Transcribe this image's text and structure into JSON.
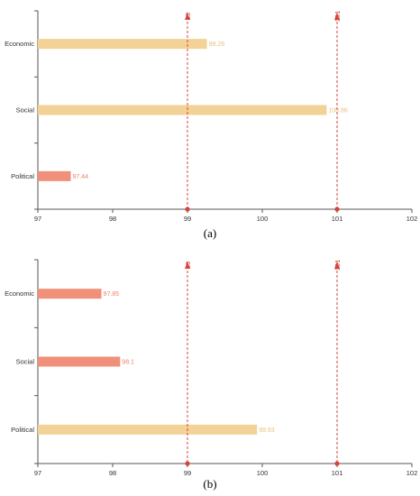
{
  "colors": {
    "bar_high": "#f2d296",
    "bar_low": "#f0907a",
    "value_high": "#e8c27a",
    "value_low": "#ec8468",
    "reference": "#d6453a",
    "axis": "#555555"
  },
  "chart_data": [
    {
      "panel_label": "(a)",
      "type": "bar",
      "orientation": "horizontal",
      "categories": [
        "Economic",
        "Social",
        "Political"
      ],
      "values": [
        99.26,
        100.86,
        97.44
      ],
      "value_labels": [
        "99.26",
        "100.86",
        "97.44"
      ],
      "bar_color_keys": [
        "bar_high",
        "bar_high",
        "bar_low"
      ],
      "xlim": [
        97,
        102
      ],
      "xticks": [
        "97",
        "98",
        "99",
        "100",
        "101",
        "102"
      ],
      "reference_lines": [
        {
          "value": 99,
          "label": "99"
        },
        {
          "value": 101,
          "label": "101"
        }
      ]
    },
    {
      "panel_label": "(b)",
      "type": "bar",
      "orientation": "horizontal",
      "categories": [
        "Economic",
        "Social",
        "Political"
      ],
      "values": [
        97.85,
        98.1,
        99.93
      ],
      "value_labels": [
        "97.85",
        "98.1",
        "99.93"
      ],
      "bar_color_keys": [
        "bar_low",
        "bar_low",
        "bar_high"
      ],
      "xlim": [
        97,
        102
      ],
      "xticks": [
        "97",
        "98",
        "99",
        "100",
        "101",
        "102"
      ],
      "reference_lines": [
        {
          "value": 99,
          "label": "99"
        },
        {
          "value": 101,
          "label": "101"
        }
      ]
    }
  ]
}
